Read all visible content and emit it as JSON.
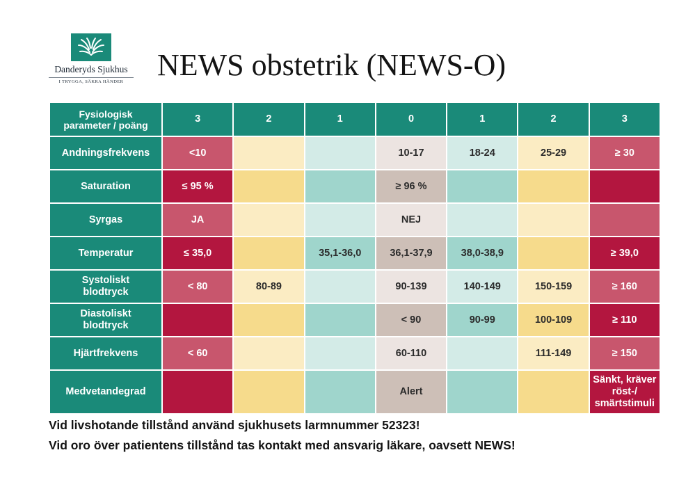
{
  "logo": {
    "icon": "hands-icon",
    "name": "Danderyds Sjukhus",
    "tagline": "I TRYGGA, SÄKRA HÄNDER",
    "color": "#1a8a79"
  },
  "title": "NEWS obstetrik (NEWS-O)",
  "table": {
    "param_header_line1": "Fysiologisk",
    "param_header_line2": "parameter / poäng",
    "score_headers": [
      "3",
      "2",
      "1",
      "0",
      "1",
      "2",
      "3"
    ],
    "rows": [
      {
        "param": "Andningsfrekvens",
        "param_line2": "",
        "cells": [
          "<10",
          "",
          "",
          "10-17",
          "18-24",
          "25-29",
          "≥ 30"
        ]
      },
      {
        "param": "Saturation",
        "param_line2": "",
        "cells": [
          "≤ 95 %",
          "",
          "",
          "≥ 96 %",
          "",
          "",
          ""
        ]
      },
      {
        "param": "Syrgas",
        "param_line2": "",
        "cells": [
          "JA",
          "",
          "",
          "NEJ",
          "",
          "",
          ""
        ]
      },
      {
        "param": "Temperatur",
        "param_line2": "",
        "cells": [
          "≤ 35,0",
          "",
          "35,1-36,0",
          "36,1-37,9",
          "38,0-38,9",
          "",
          "≥ 39,0"
        ]
      },
      {
        "param": "Systoliskt",
        "param_line2": "blodtryck",
        "cells": [
          "< 80",
          "80-89",
          "",
          "90-139",
          "140-149",
          "150-159",
          "≥ 160"
        ]
      },
      {
        "param": "Diastoliskt",
        "param_line2": "blodtryck",
        "cells": [
          "",
          "",
          "",
          "< 90",
          "90-99",
          "100-109",
          "≥ 110"
        ]
      },
      {
        "param": "Hjärtfrekvens",
        "param_line2": "",
        "cells": [
          "< 60",
          "",
          "",
          "60-110",
          "",
          "111-149",
          "≥ 150"
        ]
      },
      {
        "param": "Medvetandegrad",
        "param_line2": "",
        "cells": [
          "",
          "",
          "",
          "Alert",
          "",
          "",
          "Sänkt, kräver röst-/ smärtstimuli"
        ]
      }
    ],
    "colors": {
      "header": "#1a8a79",
      "score3_light": "#c8566d",
      "score3_dark": "#b3163f",
      "score2_light": "#fbecc3",
      "score2_dark": "#f6db8c",
      "score1_light": "#d3ebe7",
      "score1_dark": "#9fd5cc",
      "score0_light": "#ece4e1",
      "score0_dark": "#cdbfb7"
    }
  },
  "footer": {
    "line1": "Vid livshotande tillstånd använd sjukhusets larmnummer 52323!",
    "line2": "Vid oro över patientens tillstånd tas kontakt med ansvarig läkare, oavsett NEWS!"
  }
}
